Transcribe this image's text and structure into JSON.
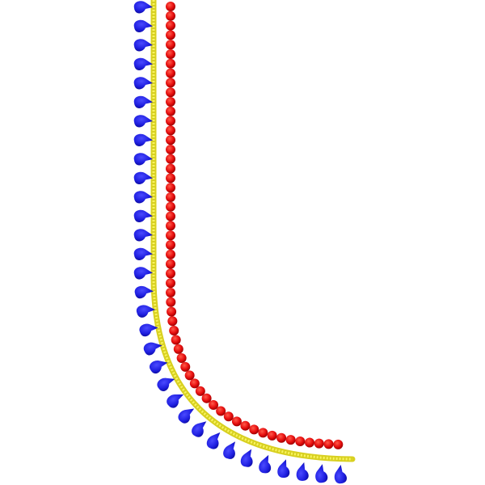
{
  "design": {
    "type": "embroidery border corner",
    "colors": {
      "background": "#ffffff",
      "teardrops": "#1f1fe0",
      "teardrops_shade": "#0a0a9a",
      "cord": "#f2ee3a",
      "cord_shade": "#b8b010",
      "beads": "#e81010",
      "beads_shade": "#a00000"
    },
    "elements": [
      "blue-teardrop-fringe",
      "yellow-satin-cord",
      "red-bead-chain"
    ]
  }
}
